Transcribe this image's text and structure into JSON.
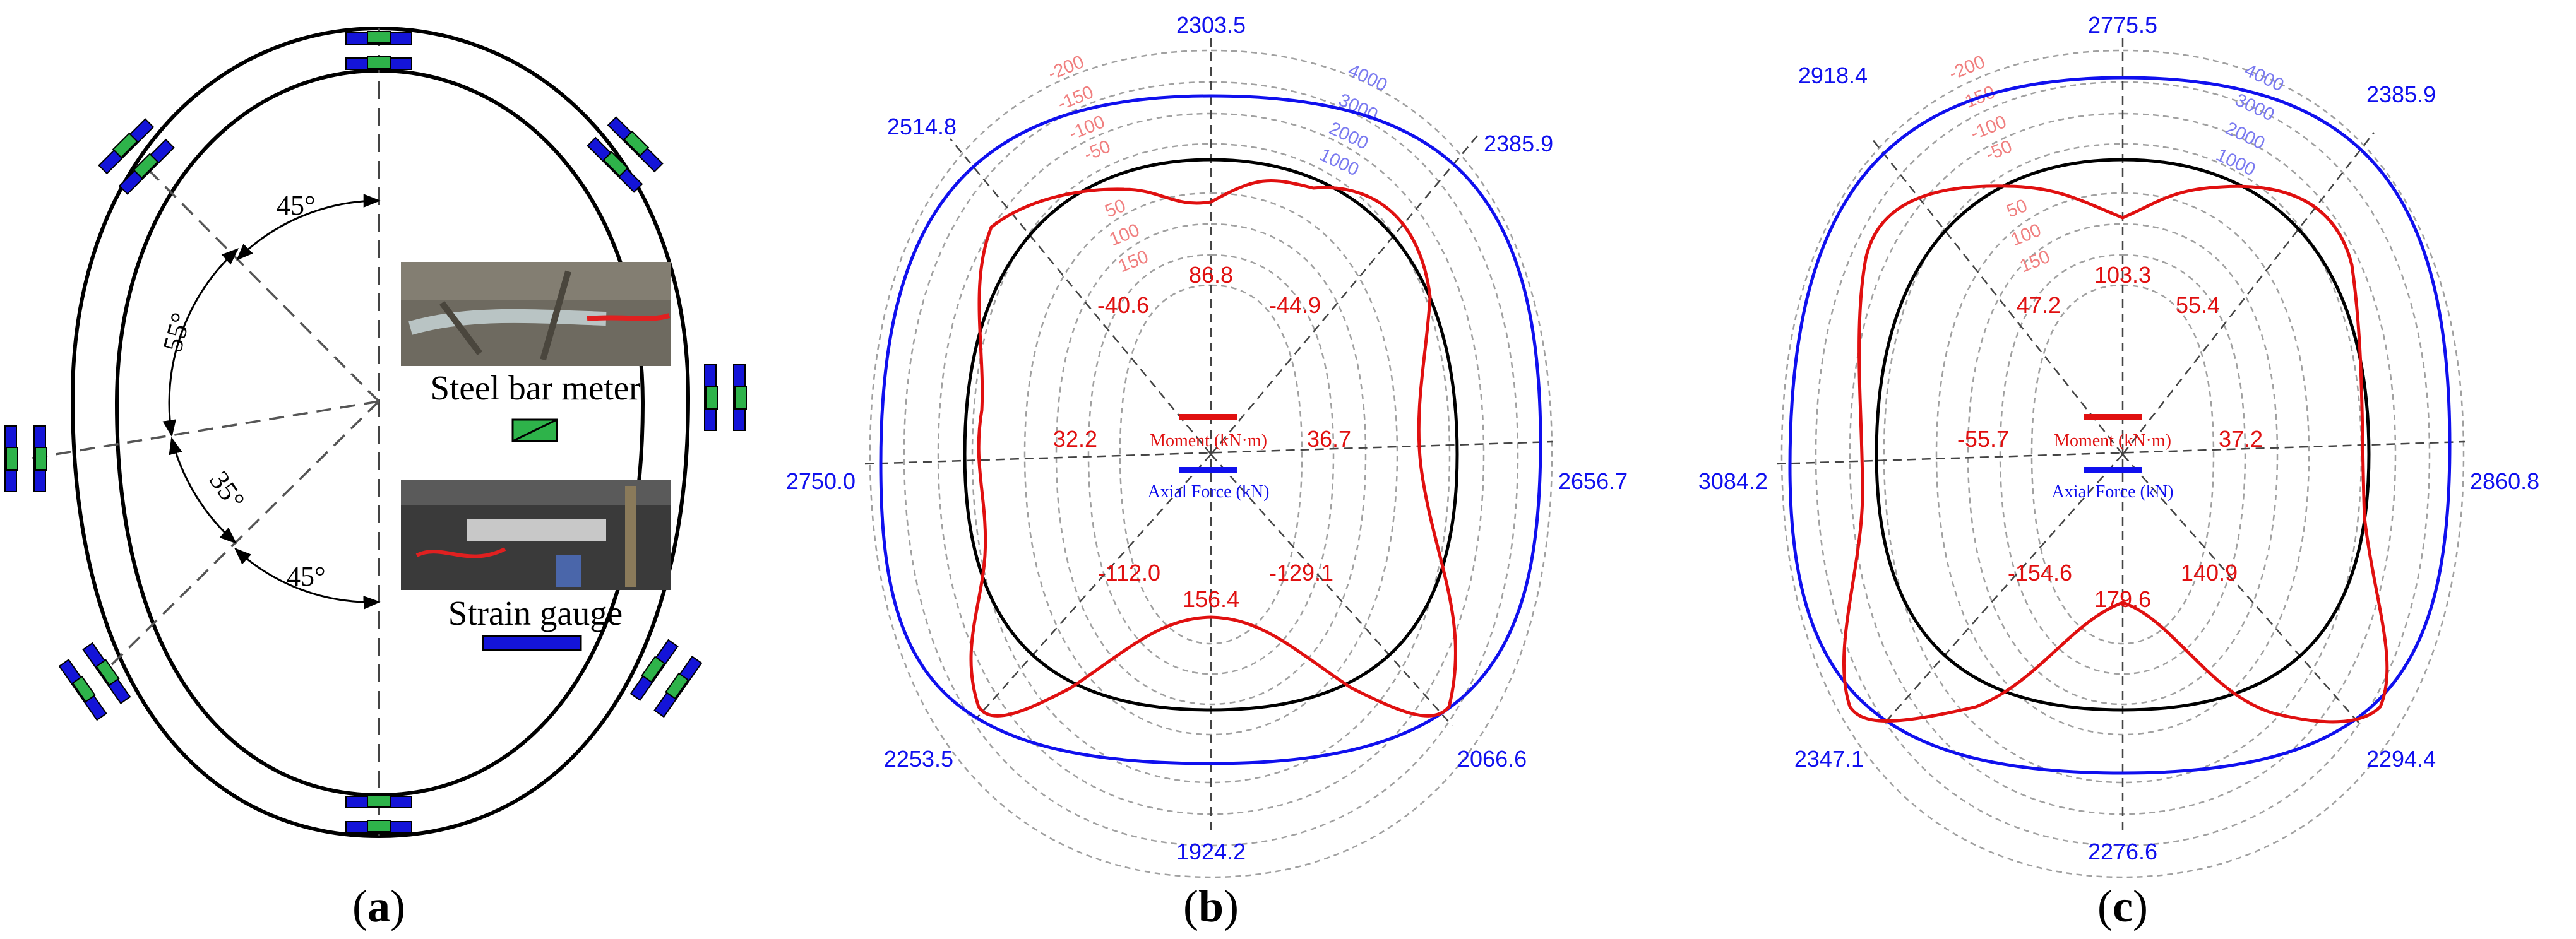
{
  "panel_a": {
    "caption_letter": "a",
    "angles": [
      "45°",
      "55°",
      "35°",
      "45°"
    ],
    "legend": {
      "steel_bar_meter": "Steel bar meter",
      "strain_gauge": "Strain gauge"
    },
    "colors": {
      "steel_bar_meter": "#2eb34a",
      "strain_gauge": "#1414d8"
    }
  },
  "panel_b": {
    "caption_letter": "b",
    "moment_ticks": [
      "-200",
      "-150",
      "-100",
      "-50",
      "50",
      "100",
      "150"
    ],
    "axial_ticks": [
      "4000",
      "3000",
      "2000",
      "1000"
    ],
    "axial_labels": [
      "2303.5",
      "2385.9",
      "2656.7",
      "2066.6",
      "1924.2",
      "2253.5",
      "2750.0",
      "2514.8"
    ],
    "moment_labels": [
      "86.8",
      "-44.9",
      "36.7",
      "-129.1",
      "156.4",
      "-112.0",
      "32.2",
      "-40.6"
    ],
    "legend": {
      "moment": "Moment (kN·m)",
      "axial": "Axial Force (kN)"
    }
  },
  "panel_c": {
    "caption_letter": "c",
    "moment_ticks": [
      "-200",
      "-150",
      "-100",
      "-50",
      "50",
      "100",
      "150"
    ],
    "axial_ticks": [
      "4000",
      "3000",
      "2000",
      "1000"
    ],
    "axial_labels": [
      "2775.5",
      "2385.9",
      "2860.8",
      "2294.4",
      "2276.6",
      "2347.1",
      "3084.2",
      "2918.4"
    ],
    "moment_labels": [
      "103.3",
      "55.4",
      "37.2",
      "140.9",
      "179.6",
      "-154.6",
      "-55.7",
      "47.2"
    ],
    "legend": {
      "moment": "Moment (kN·m)",
      "axial": "Axial Force (kN)"
    }
  },
  "colors": {
    "moment": "#e01010",
    "axial": "#1010ee",
    "grid": "#a0a0a0"
  }
}
